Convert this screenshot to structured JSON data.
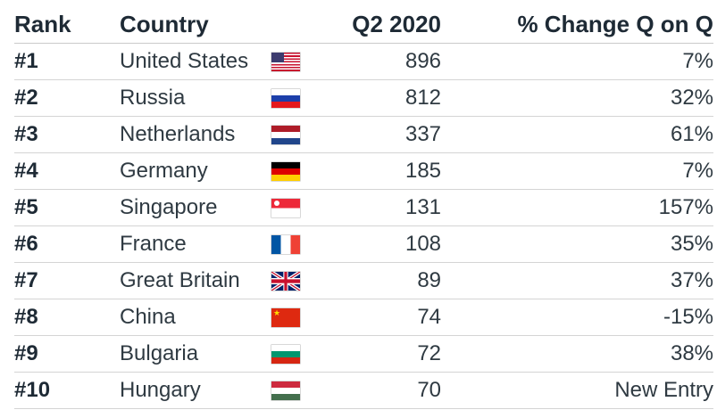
{
  "headers": {
    "rank": "Rank",
    "country": "Country",
    "q2": "Q2 2020",
    "change": "% Change Q on Q"
  },
  "rows": [
    {
      "rank": "#1",
      "country": "United States",
      "flag": "flag-us-icon",
      "q2": "896",
      "change": "7%"
    },
    {
      "rank": "#2",
      "country": "Russia",
      "flag": "flag-russia-icon",
      "q2": "812",
      "change": "32%"
    },
    {
      "rank": "#3",
      "country": "Netherlands",
      "flag": "flag-netherlands-icon",
      "q2": "337",
      "change": "61%"
    },
    {
      "rank": "#4",
      "country": "Germany",
      "flag": "flag-germany-icon",
      "q2": "185",
      "change": "7%"
    },
    {
      "rank": "#5",
      "country": "Singapore",
      "flag": "flag-singapore-icon",
      "q2": "131",
      "change": "157%"
    },
    {
      "rank": "#6",
      "country": "France",
      "flag": "flag-france-icon",
      "q2": "108",
      "change": "35%"
    },
    {
      "rank": "#7",
      "country": "Great Britain",
      "flag": "flag-great-britain-icon",
      "q2": "89",
      "change": "37%"
    },
    {
      "rank": "#8",
      "country": "China",
      "flag": "flag-china-icon",
      "q2": "74",
      "change": "-15%"
    },
    {
      "rank": "#9",
      "country": "Bulgaria",
      "flag": "flag-bulgaria-icon",
      "q2": "72",
      "change": "38%"
    },
    {
      "rank": "#10",
      "country": "Hungary",
      "flag": "flag-hungary-icon",
      "q2": "70",
      "change": "New Entry"
    }
  ]
}
